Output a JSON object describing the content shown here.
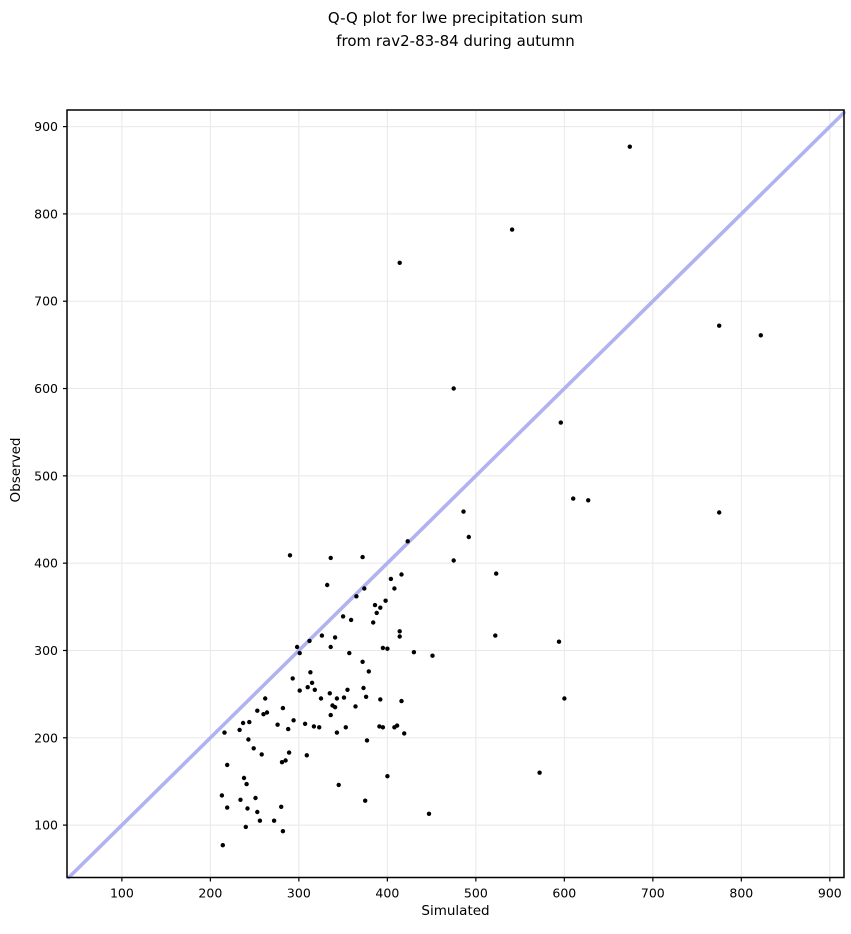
{
  "figure": {
    "title": "Q-Q plot for lwe precipitation sum\nfrom rav2-83-84 during autumn",
    "xlabel": "Simulated",
    "ylabel": "Observed"
  },
  "colors": {
    "point": "#000000",
    "identity_line": "#b2b2f0",
    "grid": "#e8e8e8",
    "spine": "#000000",
    "background": "#ffffff"
  },
  "chart_data": {
    "type": "scatter",
    "title": "Q-Q plot for lwe precipitation sum from rav2-83-84 during autumn",
    "xlabel": "Simulated",
    "ylabel": "Observed",
    "xlim": [
      38,
      916
    ],
    "ylim": [
      40,
      919
    ],
    "xticks": [
      100,
      200,
      300,
      400,
      500,
      600,
      700,
      800,
      900
    ],
    "yticks": [
      100,
      200,
      300,
      400,
      500,
      600,
      700,
      800,
      900
    ],
    "grid": true,
    "legend": false,
    "identity_line": {
      "type": "y=x",
      "from": 40,
      "to": 916
    },
    "points": [
      [
        674,
        877
      ],
      [
        541,
        782
      ],
      [
        414,
        744
      ],
      [
        775,
        672
      ],
      [
        822,
        661
      ],
      [
        475,
        600
      ],
      [
        596,
        561
      ],
      [
        610,
        474
      ],
      [
        627,
        472
      ],
      [
        775,
        458
      ],
      [
        486,
        459
      ],
      [
        492,
        430
      ],
      [
        523,
        388
      ],
      [
        522,
        317
      ],
      [
        594,
        310
      ],
      [
        600,
        245
      ],
      [
        572,
        160
      ],
      [
        423,
        425
      ],
      [
        290,
        409
      ],
      [
        336,
        406
      ],
      [
        372,
        407
      ],
      [
        475,
        403
      ],
      [
        416,
        387
      ],
      [
        404,
        382
      ],
      [
        374,
        371
      ],
      [
        408,
        371
      ],
      [
        332,
        375
      ],
      [
        365,
        362
      ],
      [
        398,
        357
      ],
      [
        386,
        352
      ],
      [
        392,
        349
      ],
      [
        388,
        343
      ],
      [
        350,
        339
      ],
      [
        359,
        335
      ],
      [
        384,
        332
      ],
      [
        326,
        317
      ],
      [
        341,
        315
      ],
      [
        336,
        304
      ],
      [
        312,
        311
      ],
      [
        298,
        304
      ],
      [
        301,
        297
      ],
      [
        357,
        297
      ],
      [
        414,
        322
      ],
      [
        414,
        316
      ],
      [
        395,
        303
      ],
      [
        400,
        302
      ],
      [
        430,
        298
      ],
      [
        451,
        294
      ],
      [
        372,
        287
      ],
      [
        379,
        276
      ],
      [
        313,
        275
      ],
      [
        293,
        268
      ],
      [
        315,
        263
      ],
      [
        373,
        257
      ],
      [
        376,
        247
      ],
      [
        301,
        254
      ],
      [
        310,
        258
      ],
      [
        318,
        255
      ],
      [
        335,
        251
      ],
      [
        355,
        255
      ],
      [
        325,
        245
      ],
      [
        343,
        245
      ],
      [
        351,
        246
      ],
      [
        338,
        237
      ],
      [
        341,
        235
      ],
      [
        364,
        236
      ],
      [
        336,
        226
      ],
      [
        317,
        213
      ],
      [
        323,
        212
      ],
      [
        353,
        212
      ],
      [
        343,
        206
      ],
      [
        307,
        216
      ],
      [
        262,
        245
      ],
      [
        282,
        234
      ],
      [
        253,
        231
      ],
      [
        260,
        227
      ],
      [
        264,
        229
      ],
      [
        294,
        220
      ],
      [
        237,
        217
      ],
      [
        244,
        218
      ],
      [
        233,
        209
      ],
      [
        216,
        206
      ],
      [
        276,
        215
      ],
      [
        288,
        210
      ],
      [
        243,
        198
      ],
      [
        249,
        188
      ],
      [
        258,
        181
      ],
      [
        289,
        183
      ],
      [
        281,
        172
      ],
      [
        285,
        174
      ],
      [
        309,
        180
      ],
      [
        219,
        169
      ],
      [
        238,
        154
      ],
      [
        241,
        147
      ],
      [
        345,
        146
      ],
      [
        213,
        134
      ],
      [
        234,
        129
      ],
      [
        251,
        131
      ],
      [
        219,
        120
      ],
      [
        242,
        119
      ],
      [
        253,
        115
      ],
      [
        280,
        121
      ],
      [
        256,
        105
      ],
      [
        272,
        105
      ],
      [
        240,
        98
      ],
      [
        282,
        93
      ],
      [
        214,
        77
      ],
      [
        392,
        244
      ],
      [
        416,
        242
      ],
      [
        391,
        213
      ],
      [
        395,
        212
      ],
      [
        408,
        212
      ],
      [
        411,
        214
      ],
      [
        419,
        205
      ],
      [
        377,
        197
      ],
      [
        400,
        156
      ],
      [
        375,
        128
      ],
      [
        447,
        113
      ]
    ]
  }
}
